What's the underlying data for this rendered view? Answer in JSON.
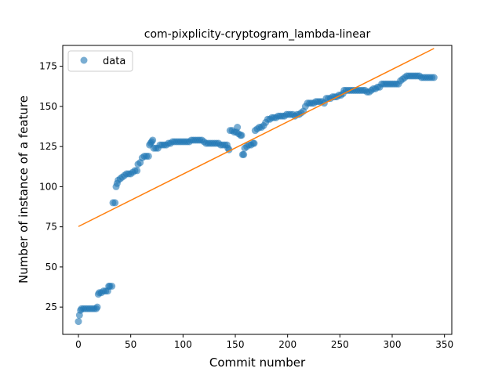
{
  "chart_data": {
    "type": "scatter",
    "title": "com-pixplicity-cryptogram_lambda-linear",
    "xlabel": "Commit number",
    "ylabel": "Number of instance of a feature",
    "xlim": [
      -15,
      357
    ],
    "ylim": [
      8,
      188
    ],
    "x_ticks": [
      0,
      50,
      100,
      150,
      200,
      250,
      300,
      350
    ],
    "y_ticks": [
      25,
      50,
      75,
      100,
      125,
      150,
      175
    ],
    "legend": {
      "position": "top-left",
      "entries": [
        {
          "label": "data",
          "marker": "circle",
          "color": "#1f77b4"
        }
      ]
    },
    "colors": {
      "data": "#1f77b4",
      "fit": "#ff7f0e"
    },
    "grid": false,
    "series": [
      {
        "name": "data",
        "kind": "points",
        "points": [
          [
            0,
            16
          ],
          [
            1,
            20
          ],
          [
            2,
            23
          ],
          [
            3,
            24
          ],
          [
            5,
            24
          ],
          [
            7,
            24
          ],
          [
            9,
            24
          ],
          [
            11,
            24
          ],
          [
            13,
            24
          ],
          [
            15,
            24
          ],
          [
            17,
            24
          ],
          [
            18,
            25
          ],
          [
            19,
            33
          ],
          [
            20,
            34
          ],
          [
            22,
            34
          ],
          [
            24,
            35
          ],
          [
            26,
            35
          ],
          [
            28,
            35
          ],
          [
            29,
            38
          ],
          [
            30,
            38
          ],
          [
            32,
            38
          ],
          [
            33,
            90
          ],
          [
            35,
            90
          ],
          [
            36,
            100
          ],
          [
            37,
            102
          ],
          [
            38,
            104
          ],
          [
            40,
            105
          ],
          [
            42,
            106
          ],
          [
            44,
            107
          ],
          [
            46,
            108
          ],
          [
            48,
            108
          ],
          [
            50,
            108
          ],
          [
            52,
            109
          ],
          [
            54,
            110
          ],
          [
            56,
            110
          ],
          [
            57,
            114
          ],
          [
            59,
            115
          ],
          [
            61,
            118
          ],
          [
            63,
            119
          ],
          [
            65,
            119
          ],
          [
            67,
            119
          ],
          [
            68,
            126
          ],
          [
            69,
            127
          ],
          [
            70,
            128
          ],
          [
            71,
            129
          ],
          [
            72,
            124
          ],
          [
            74,
            124
          ],
          [
            76,
            124
          ],
          [
            78,
            126
          ],
          [
            80,
            126
          ],
          [
            82,
            126
          ],
          [
            84,
            126
          ],
          [
            86,
            127
          ],
          [
            88,
            127
          ],
          [
            90,
            128
          ],
          [
            92,
            128
          ],
          [
            94,
            128
          ],
          [
            96,
            128
          ],
          [
            98,
            128
          ],
          [
            100,
            128
          ],
          [
            102,
            128
          ],
          [
            104,
            128
          ],
          [
            106,
            128
          ],
          [
            108,
            129
          ],
          [
            110,
            129
          ],
          [
            112,
            129
          ],
          [
            114,
            129
          ],
          [
            116,
            129
          ],
          [
            118,
            129
          ],
          [
            120,
            128
          ],
          [
            122,
            127
          ],
          [
            124,
            127
          ],
          [
            126,
            127
          ],
          [
            128,
            127
          ],
          [
            130,
            127
          ],
          [
            132,
            127
          ],
          [
            134,
            127
          ],
          [
            136,
            126
          ],
          [
            138,
            126
          ],
          [
            140,
            126
          ],
          [
            142,
            126
          ],
          [
            143,
            124
          ],
          [
            144,
            123
          ],
          [
            145,
            135
          ],
          [
            147,
            135
          ],
          [
            149,
            134
          ],
          [
            151,
            134
          ],
          [
            152,
            137
          ],
          [
            153,
            133
          ],
          [
            155,
            132
          ],
          [
            156,
            132
          ],
          [
            157,
            120
          ],
          [
            158,
            120
          ],
          [
            159,
            124
          ],
          [
            161,
            125
          ],
          [
            163,
            126
          ],
          [
            165,
            126
          ],
          [
            167,
            127
          ],
          [
            168,
            127
          ],
          [
            169,
            135
          ],
          [
            171,
            136
          ],
          [
            173,
            137
          ],
          [
            175,
            137
          ],
          [
            177,
            138
          ],
          [
            179,
            140
          ],
          [
            181,
            142
          ],
          [
            183,
            142
          ],
          [
            185,
            143
          ],
          [
            187,
            143
          ],
          [
            189,
            143
          ],
          [
            191,
            144
          ],
          [
            193,
            144
          ],
          [
            195,
            144
          ],
          [
            197,
            144
          ],
          [
            199,
            145
          ],
          [
            201,
            145
          ],
          [
            203,
            145
          ],
          [
            205,
            145
          ],
          [
            207,
            144
          ],
          [
            209,
            145
          ],
          [
            211,
            145
          ],
          [
            213,
            146
          ],
          [
            215,
            147
          ],
          [
            217,
            150
          ],
          [
            219,
            152
          ],
          [
            221,
            152
          ],
          [
            223,
            152
          ],
          [
            225,
            152
          ],
          [
            227,
            153
          ],
          [
            229,
            153
          ],
          [
            231,
            153
          ],
          [
            233,
            153
          ],
          [
            235,
            152
          ],
          [
            237,
            155
          ],
          [
            239,
            155
          ],
          [
            241,
            155
          ],
          [
            243,
            156
          ],
          [
            245,
            156
          ],
          [
            247,
            156
          ],
          [
            249,
            157
          ],
          [
            251,
            157
          ],
          [
            253,
            158
          ],
          [
            254,
            160
          ],
          [
            256,
            160
          ],
          [
            258,
            160
          ],
          [
            260,
            160
          ],
          [
            262,
            160
          ],
          [
            264,
            160
          ],
          [
            266,
            160
          ],
          [
            268,
            160
          ],
          [
            270,
            160
          ],
          [
            272,
            160
          ],
          [
            274,
            160
          ],
          [
            276,
            159
          ],
          [
            278,
            159
          ],
          [
            280,
            160
          ],
          [
            282,
            161
          ],
          [
            284,
            161
          ],
          [
            286,
            162
          ],
          [
            288,
            162
          ],
          [
            290,
            164
          ],
          [
            292,
            164
          ],
          [
            294,
            164
          ],
          [
            296,
            164
          ],
          [
            298,
            164
          ],
          [
            300,
            164
          ],
          [
            302,
            164
          ],
          [
            304,
            164
          ],
          [
            306,
            164
          ],
          [
            308,
            166
          ],
          [
            310,
            167
          ],
          [
            312,
            168
          ],
          [
            314,
            169
          ],
          [
            316,
            169
          ],
          [
            318,
            169
          ],
          [
            320,
            169
          ],
          [
            322,
            169
          ],
          [
            324,
            169
          ],
          [
            326,
            169
          ],
          [
            328,
            168
          ],
          [
            330,
            168
          ],
          [
            332,
            168
          ],
          [
            334,
            168
          ],
          [
            336,
            168
          ],
          [
            338,
            168
          ],
          [
            340,
            168
          ]
        ]
      },
      {
        "name": "",
        "kind": "line",
        "points": [
          [
            0,
            75.2
          ],
          [
            340,
            186.1
          ]
        ]
      }
    ]
  }
}
